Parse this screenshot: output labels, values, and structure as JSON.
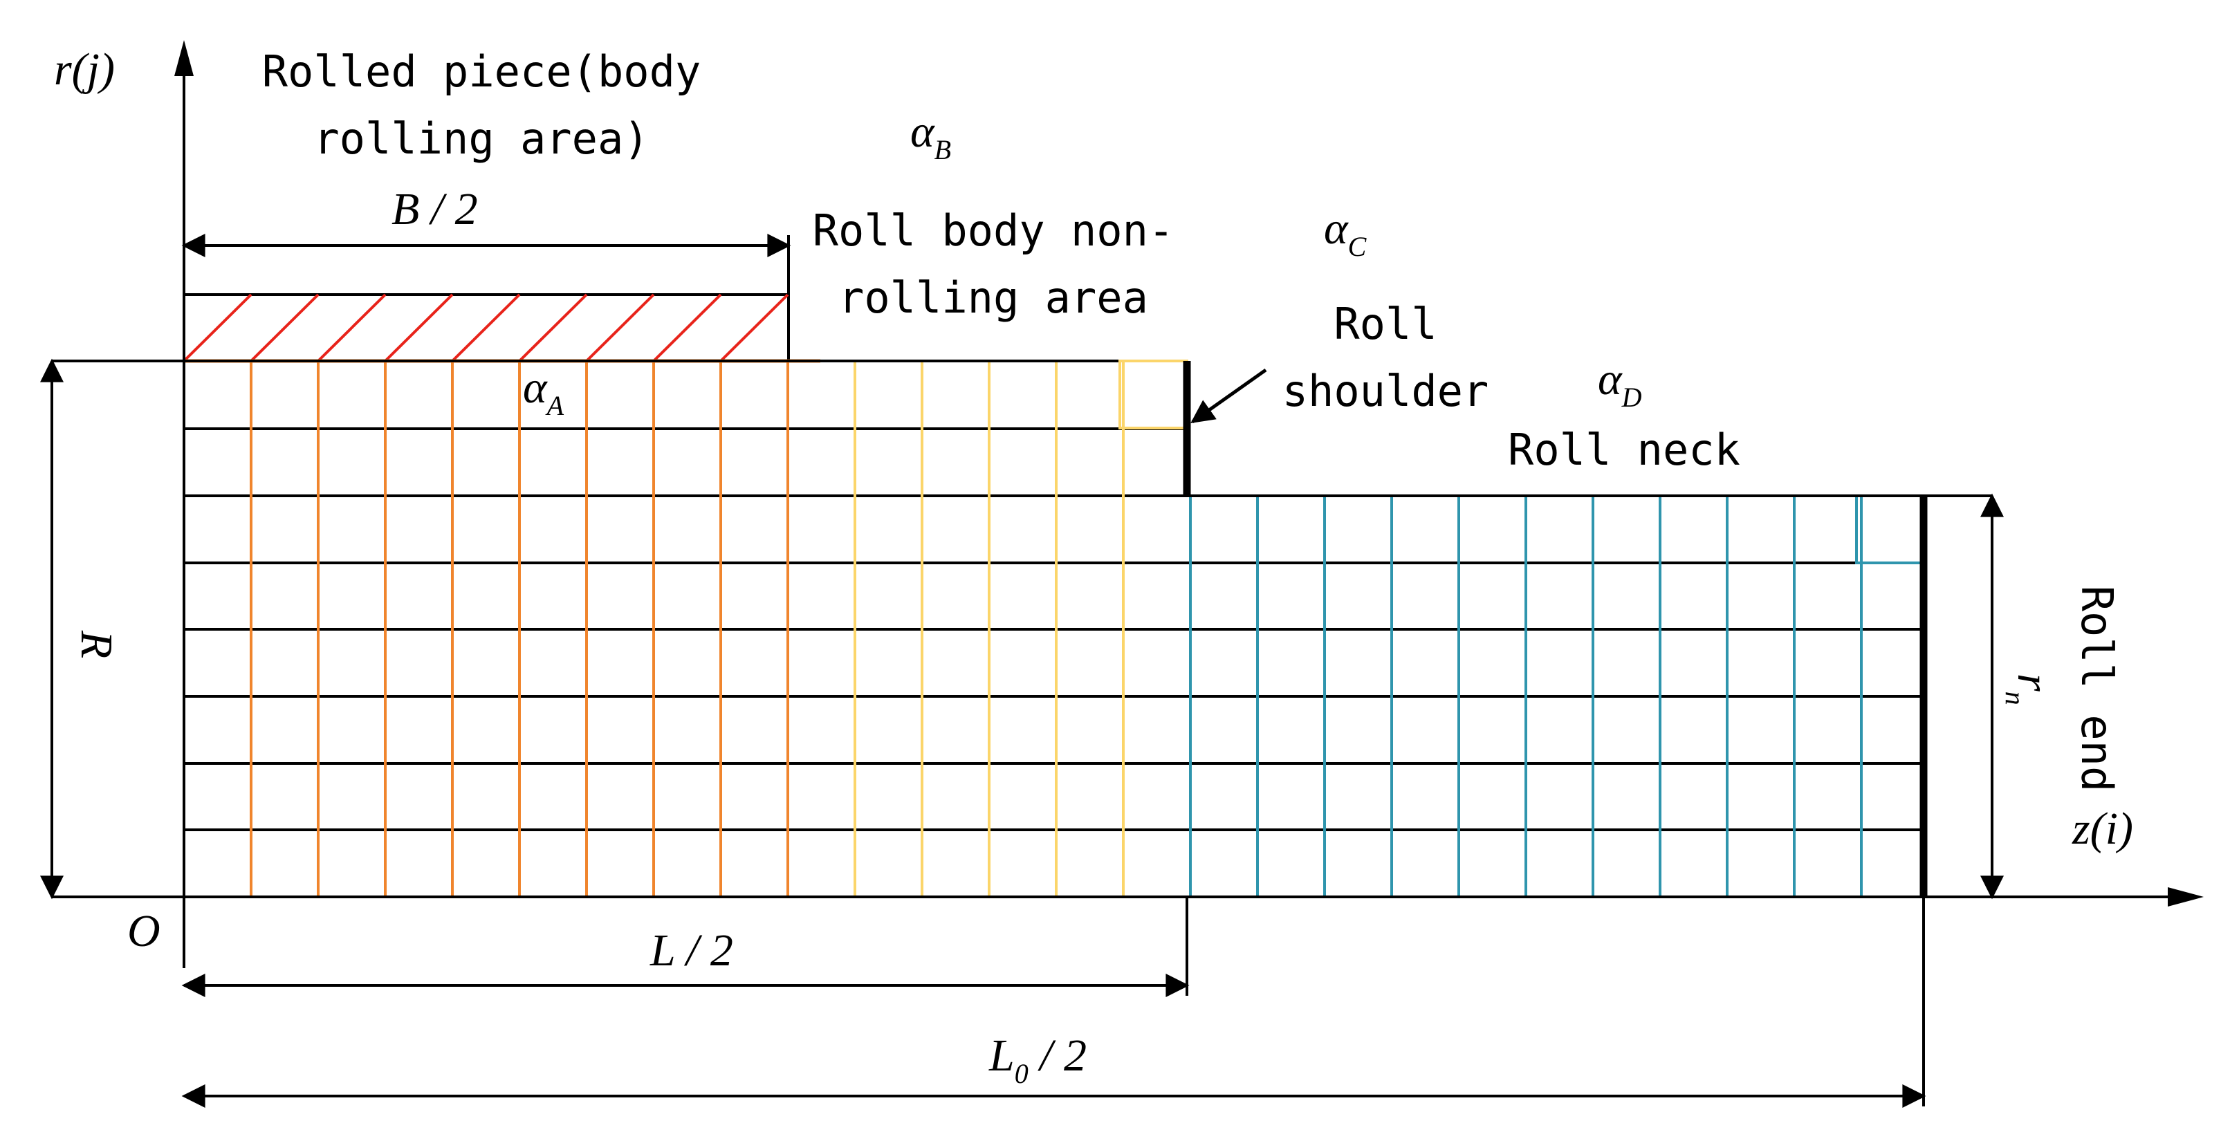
{
  "axes": {
    "vertical_label": "r(j)",
    "horizontal_label": "z(i)",
    "origin_label": "O"
  },
  "regions": {
    "rolled_piece": [
      "Rolled piece(body",
      "rolling area)"
    ],
    "non_rolling": [
      "Roll body non-",
      "rolling area"
    ],
    "shoulder": [
      "Roll",
      "shoulder"
    ],
    "neck": "Roll neck",
    "end": "Roll end"
  },
  "coefficients": {
    "alpha_a": {
      "base": "α",
      "sub": "A"
    },
    "alpha_b": {
      "base": "α",
      "sub": "B"
    },
    "alpha_c": {
      "base": "α",
      "sub": "C"
    },
    "alpha_d": {
      "base": "α",
      "sub": "D"
    }
  },
  "dimensions": {
    "b_half": "B / 2",
    "l_half": "L / 2",
    "l0": {
      "base": "L",
      "sub": "0",
      "suffix": " / 2"
    },
    "radius": "R",
    "neck_radius": {
      "base": "r",
      "sub": "n"
    }
  },
  "colors": {
    "hatch": "#e8231a",
    "zone_a": "#f0852d",
    "zone_b": "#fbd56a",
    "zone_d": "#2f95ad",
    "line": "#000000"
  }
}
